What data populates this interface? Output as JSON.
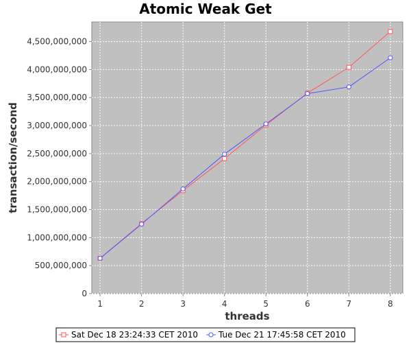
{
  "chart_data": {
    "type": "line",
    "title": "Atomic Weak Get",
    "xlabel": "threads",
    "ylabel": "transaction/second",
    "x": [
      1,
      2,
      3,
      4,
      5,
      6,
      7,
      8
    ],
    "xlim": [
      0.8,
      8.3
    ],
    "ylim": [
      0,
      4850000000
    ],
    "yticks": [
      0,
      500000000,
      1000000000,
      1500000000,
      2000000000,
      2500000000,
      3000000000,
      3500000000,
      4000000000,
      4500000000
    ],
    "ytick_labels": [
      "0",
      "500,000,000",
      "1,000,000,000",
      "1,500,000,000",
      "2,000,000,000",
      "2,500,000,000",
      "3,000,000,000",
      "3,500,000,000",
      "4,000,000,000",
      "4,500,000,000"
    ],
    "xtick_labels": [
      "1",
      "2",
      "3",
      "4",
      "5",
      "6",
      "7",
      "8"
    ],
    "grid": true,
    "legend_position": "bottom",
    "series": [
      {
        "name": "Sat Dec 18 23:24:33 CET 2010",
        "color": "#ff5555",
        "marker": "square",
        "values": [
          630000000,
          1250000000,
          1840000000,
          2410000000,
          3010000000,
          3580000000,
          4040000000,
          4680000000
        ]
      },
      {
        "name": "Tue Dec 21 17:45:58 CET 2010",
        "color": "#5555ff",
        "marker": "circle",
        "values": [
          630000000,
          1240000000,
          1870000000,
          2490000000,
          3030000000,
          3570000000,
          3690000000,
          4210000000
        ]
      }
    ]
  }
}
